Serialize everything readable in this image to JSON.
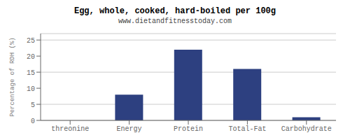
{
  "chart_data": {
    "type": "bar",
    "title": "Egg, whole, cooked, hard-boiled per 100g",
    "subtitle": "www.dietandfitnesstoday.com",
    "categories": [
      "threonine",
      "Energy",
      "Protein",
      "Total-Fat",
      "Carbohydrate"
    ],
    "values": [
      0,
      8,
      22,
      16,
      1
    ],
    "color": "#2d4080",
    "ylabel": "Percentage of RDH (%)",
    "ylim": [
      0,
      27
    ],
    "yticks": [
      0,
      5,
      10,
      15,
      20,
      25
    ],
    "grid": true
  }
}
